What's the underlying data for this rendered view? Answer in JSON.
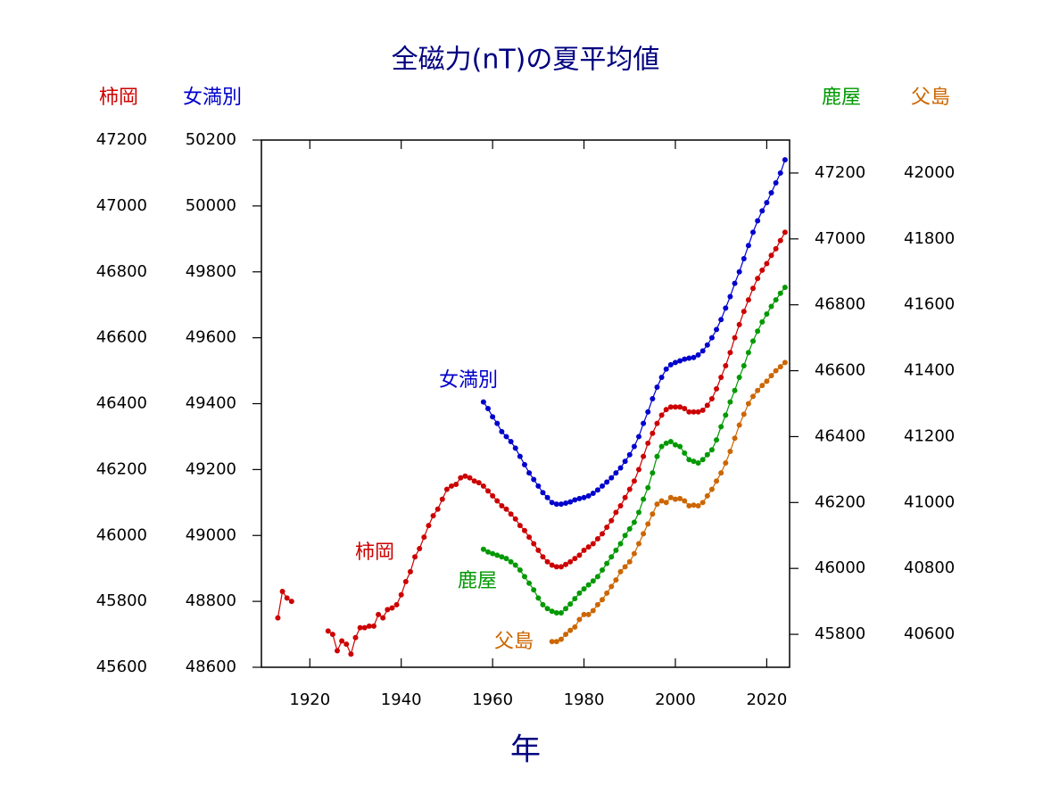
{
  "chart_data": {
    "type": "line",
    "title": "全磁力(nT)の夏平均値",
    "x_label": "年",
    "xlim": [
      1909.4,
      2025
    ],
    "xticks": [
      1920,
      1940,
      1960,
      1980,
      2000,
      2020
    ],
    "y_axes": [
      {
        "side": "left",
        "ylim": [
          45600,
          47200
        ],
        "yticks": [
          45600,
          45800,
          46000,
          46200,
          46400,
          46600,
          46800,
          47000,
          47200
        ]
      },
      {
        "side": "left",
        "ylim": [
          48600,
          50200
        ],
        "yticks": [
          48600,
          48800,
          49000,
          49200,
          49400,
          49600,
          49800,
          50000,
          50200
        ]
      },
      {
        "side": "right",
        "ylim": [
          45700,
          47300
        ],
        "yticks": [
          45800,
          46000,
          46200,
          46400,
          46600,
          46800,
          47000,
          47200
        ]
      },
      {
        "side": "right",
        "ylim": [
          40500,
          42100
        ],
        "yticks": [
          40600,
          40800,
          41000,
          41200,
          41400,
          41600,
          41800,
          42000
        ]
      }
    ],
    "series": [
      {
        "name": "柿岡",
        "color": "#cc0000",
        "axis": 0,
        "x": [
          1913,
          1914,
          1915,
          1916,
          1917,
          1918,
          1919,
          1920,
          1921,
          1922,
          1923,
          1924,
          1925,
          1926,
          1927,
          1928,
          1929,
          1930,
          1931,
          1932,
          1933,
          1934,
          1935,
          1936,
          1937,
          1938,
          1939,
          1940,
          1941,
          1942,
          1943,
          1944,
          1945,
          1946,
          1947,
          1948,
          1949,
          1950,
          1951,
          1952,
          1953,
          1954,
          1955,
          1956,
          1957,
          1958,
          1959,
          1960,
          1961,
          1962,
          1963,
          1964,
          1965,
          1966,
          1967,
          1968,
          1969,
          1970,
          1971,
          1972,
          1973,
          1974,
          1975,
          1976,
          1977,
          1978,
          1979,
          1980,
          1981,
          1982,
          1983,
          1984,
          1985,
          1986,
          1987,
          1988,
          1989,
          1990,
          1991,
          1992,
          1993,
          1994,
          1995,
          1996,
          1997,
          1998,
          1999,
          2000,
          2001,
          2002,
          2003,
          2004,
          2005,
          2006,
          2007,
          2008,
          2009,
          2010,
          2011,
          2012,
          2013,
          2014,
          2015,
          2016,
          2017,
          2018,
          2019,
          2020,
          2021,
          2022,
          2023,
          2024
        ],
        "values": [
          45750,
          45830,
          45810,
          45800,
          null,
          null,
          null,
          null,
          null,
          null,
          null,
          45710,
          45700,
          45650,
          45680,
          45670,
          45640,
          45690,
          45720,
          45720,
          45725,
          45725,
          45760,
          45750,
          45775,
          45780,
          45790,
          45820,
          45860,
          45890,
          45935,
          45960,
          45995,
          46030,
          46060,
          46080,
          46110,
          46140,
          46150,
          46155,
          46175,
          46180,
          46175,
          46165,
          46160,
          46150,
          46135,
          46120,
          46105,
          46090,
          46080,
          46065,
          46050,
          46030,
          46015,
          45995,
          45975,
          45955,
          45935,
          45920,
          45910,
          45905,
          45905,
          45912,
          45920,
          45930,
          45940,
          45955,
          45965,
          45975,
          45990,
          46005,
          46025,
          46045,
          46070,
          46090,
          46115,
          46140,
          46165,
          46200,
          46240,
          46280,
          46310,
          46340,
          46365,
          46382,
          46390,
          46390,
          46390,
          46385,
          46375,
          46375,
          46375,
          46380,
          46395,
          46415,
          46445,
          46480,
          46515,
          46555,
          46600,
          46640,
          46680,
          46715,
          46750,
          46780,
          46805,
          46825,
          46850,
          46870,
          46895,
          46920
        ]
      },
      {
        "name": "女満別",
        "color": "#0000cc",
        "axis": 1,
        "x": [
          1958,
          1959,
          1960,
          1961,
          1962,
          1963,
          1964,
          1965,
          1966,
          1967,
          1968,
          1969,
          1970,
          1971,
          1972,
          1973,
          1974,
          1975,
          1976,
          1977,
          1978,
          1979,
          1980,
          1981,
          1982,
          1983,
          1984,
          1985,
          1986,
          1987,
          1988,
          1989,
          1990,
          1991,
          1992,
          1993,
          1994,
          1995,
          1996,
          1997,
          1998,
          1999,
          2000,
          2001,
          2002,
          2003,
          2004,
          2005,
          2006,
          2007,
          2008,
          2009,
          2010,
          2011,
          2012,
          2013,
          2014,
          2015,
          2016,
          2017,
          2018,
          2019,
          2020,
          2021,
          2022,
          2023,
          2024
        ],
        "values": [
          49405,
          49385,
          49360,
          49340,
          49315,
          49300,
          49285,
          49265,
          49240,
          49215,
          49190,
          49170,
          49150,
          49130,
          49115,
          49100,
          49095,
          49095,
          49098,
          49102,
          49108,
          49112,
          49115,
          49120,
          49128,
          49138,
          49150,
          49162,
          49175,
          49190,
          49205,
          49225,
          49245,
          49270,
          49300,
          49340,
          49375,
          49415,
          49450,
          49480,
          49505,
          49518,
          49525,
          49530,
          49535,
          49538,
          49540,
          49548,
          49560,
          49578,
          49600,
          49625,
          49655,
          49690,
          49725,
          49765,
          49800,
          49840,
          49880,
          49920,
          49955,
          49985,
          50010,
          50040,
          50070,
          50100,
          50140
        ]
      },
      {
        "name": "鹿屋",
        "color": "#009900",
        "axis": 2,
        "x": [
          1958,
          1959,
          1960,
          1961,
          1962,
          1963,
          1964,
          1965,
          1966,
          1967,
          1968,
          1969,
          1970,
          1971,
          1972,
          1973,
          1974,
          1975,
          1976,
          1977,
          1978,
          1979,
          1980,
          1981,
          1982,
          1983,
          1984,
          1985,
          1986,
          1987,
          1988,
          1989,
          1990,
          1991,
          1992,
          1993,
          1994,
          1995,
          1996,
          1997,
          1998,
          1999,
          2000,
          2001,
          2002,
          2003,
          2004,
          2005,
          2006,
          2007,
          2008,
          2009,
          2010,
          2011,
          2012,
          2013,
          2014,
          2015,
          2016,
          2017,
          2018,
          2019,
          2020,
          2021,
          2022,
          2023,
          2024
        ],
        "values": [
          46058,
          46050,
          46045,
          46040,
          46035,
          46030,
          46020,
          46010,
          45995,
          45975,
          45955,
          45935,
          45910,
          45890,
          45878,
          45870,
          45865,
          45865,
          45878,
          45892,
          45908,
          45925,
          45938,
          45950,
          45962,
          45975,
          45995,
          46015,
          46035,
          46055,
          46075,
          46100,
          46120,
          46140,
          46170,
          46210,
          46245,
          46290,
          46340,
          46370,
          46380,
          46385,
          46375,
          46370,
          46350,
          46330,
          46325,
          46320,
          46330,
          46345,
          46360,
          46390,
          46430,
          46465,
          46505,
          46540,
          46580,
          46615,
          46655,
          46690,
          46720,
          46748,
          46772,
          46795,
          46815,
          46835,
          46853
        ]
      },
      {
        "name": "父島",
        "color": "#cc6600",
        "axis": 3,
        "x": [
          1973,
          1974,
          1975,
          1976,
          1977,
          1978,
          1979,
          1980,
          1981,
          1982,
          1983,
          1984,
          1985,
          1986,
          1987,
          1988,
          1989,
          1990,
          1991,
          1992,
          1993,
          1994,
          1995,
          1996,
          1997,
          1998,
          1999,
          2000,
          2001,
          2002,
          2003,
          2004,
          2005,
          2006,
          2007,
          2008,
          2009,
          2010,
          2011,
          2012,
          2013,
          2014,
          2015,
          2016,
          2017,
          2018,
          2019,
          2020,
          2021,
          2022,
          2023,
          2024
        ],
        "values": [
          40578,
          40578,
          40585,
          40600,
          40612,
          40622,
          40645,
          40660,
          40660,
          40672,
          40690,
          40705,
          40725,
          40745,
          40765,
          40790,
          40805,
          40820,
          40845,
          40875,
          40905,
          40935,
          40965,
          40995,
          41005,
          41000,
          41015,
          41010,
          41012,
          41005,
          40990,
          40992,
          40990,
          41000,
          41020,
          41040,
          41065,
          41090,
          41120,
          41155,
          41195,
          41235,
          41268,
          41300,
          41322,
          41340,
          41355,
          41368,
          41385,
          41400,
          41412,
          41425
        ]
      }
    ]
  }
}
